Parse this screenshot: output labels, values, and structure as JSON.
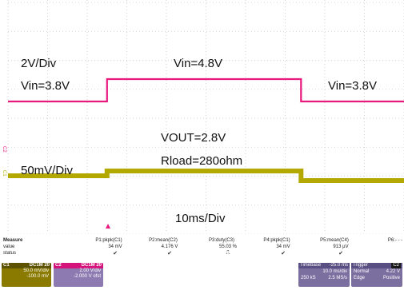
{
  "chart_data": {
    "type": "line",
    "title": "",
    "xlabel": "",
    "ylabel": "",
    "grid": true,
    "series": [
      {
        "x": [
          0,
          25,
          25,
          74,
          74,
          100
        ],
        "values": [
          -0.35,
          -0.35,
          0.35,
          0.35,
          -0.35,
          -0.35
        ]
      },
      {
        "x": [
          0,
          25,
          25,
          74,
          74,
          100
        ],
        "values": [
          0,
          0,
          0.25,
          0.25,
          -0.25,
          -0.25
        ]
      }
    ],
    "annotations": {
      "top_scale": "2V/Div",
      "vin_left": "Vin=3.8V",
      "vin_mid": "Vin=4.8V",
      "vin_right": "Vin=3.8V",
      "vout": "VOUT=2.8V",
      "rload": "Rload=280ohm",
      "bottom_scale": "50mV/Div",
      "timebase": "10ms/Div"
    },
    "channel_markers": [
      "C2",
      "C1"
    ],
    "colors": {
      "ch2": "#e8197d",
      "ch1": "#b3a800",
      "grid": "#c8c8c8"
    }
  },
  "measure": {
    "label": "Measure",
    "row_labels": [
      "value",
      "status"
    ],
    "columns": [
      {
        "name": "P1:pkpk(C1)",
        "value": "34 mV",
        "status": "check"
      },
      {
        "name": "P2:mean(C2)",
        "value": "4.176 V",
        "status": "check"
      },
      {
        "name": "P3:duty(C3)",
        "value": "55.03 %",
        "status": "pulse"
      },
      {
        "name": "P4:pkpk(C1)",
        "value": "34 mV",
        "status": "check"
      },
      {
        "name": "P5:mean(C4)",
        "value": "913 µV",
        "status": "check"
      },
      {
        "name": "P6:- - -",
        "value": "",
        "status": ""
      }
    ],
    "check_glyph": "✔",
    "pulse_glyph": "⎍"
  },
  "channel_boxes": [
    {
      "name": "C1",
      "hdr": "DC1M 20",
      "scale": "50.0 mV/div",
      "offset": "-100.0 mV"
    },
    {
      "name": "C2",
      "hdr": "DC1M 20",
      "scale": "2.00 V/div",
      "offset": "-2.000 V ofst"
    }
  ],
  "timebase_box": {
    "label": "Timebase",
    "delay": "-25.0 ms",
    "scale": "10.0 ms/div",
    "samples": "250 kS",
    "rate": "2.5 MS/s"
  },
  "trigger_box": {
    "label": "Trigger",
    "mode": "Normal",
    "type": "Edge",
    "level": "4.22 V",
    "slope": "Positive",
    "src": "C2"
  }
}
